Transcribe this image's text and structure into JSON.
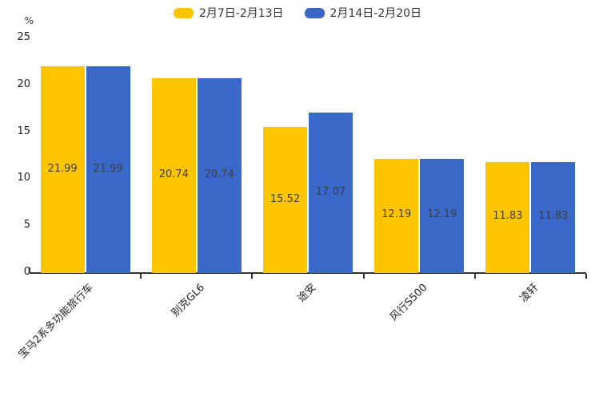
{
  "chart_data": {
    "type": "bar",
    "title": "",
    "unit_label": "%",
    "categories": [
      "宝马2系多功能旅行车",
      "别克GL6",
      "途安",
      "风行S500",
      "凌轩"
    ],
    "series": [
      {
        "name": "2月7日-2月13日",
        "color": "#FDC500",
        "values": [
          21.99,
          20.74,
          15.52,
          12.19,
          11.83
        ]
      },
      {
        "name": "2月14日-2月20日",
        "color": "#3A68C8",
        "values": [
          21.99,
          20.74,
          17.07,
          12.19,
          11.83
        ]
      }
    ],
    "ylim": [
      0,
      25
    ],
    "yticks": [
      0,
      5,
      10,
      15,
      20,
      25
    ],
    "grid": false,
    "legend_position": "top",
    "value_labels": true,
    "xlabel": "",
    "ylabel": "%"
  }
}
